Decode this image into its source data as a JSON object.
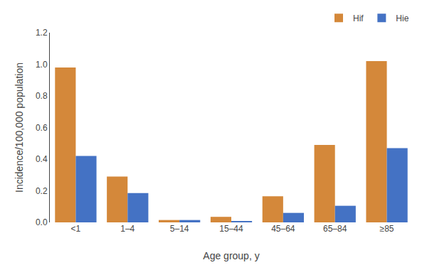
{
  "chart_data": {
    "type": "bar",
    "categories": [
      "<1",
      "1–4",
      "5–14",
      "15–44",
      "45–64",
      "65–84",
      "≥85"
    ],
    "series": [
      {
        "name": "Hif",
        "color": "#D4883A",
        "values": [
          0.98,
          0.29,
          0.015,
          0.035,
          0.165,
          0.49,
          1.02
        ]
      },
      {
        "name": "Hie",
        "color": "#4472C4",
        "values": [
          0.42,
          0.185,
          0.015,
          0.005,
          0.06,
          0.105,
          0.47
        ]
      }
    ],
    "xlabel": "Age group, y",
    "ylabel": "Incidence/100,000 population",
    "ylim": [
      0,
      1.2
    ],
    "yticks": [
      {
        "value": 0,
        "label": "0.0"
      },
      0.2,
      0.4,
      0.6,
      0.8,
      {
        "value": 1,
        "label": "1.0"
      },
      1.2
    ],
    "grid": false,
    "legend": "upper right"
  }
}
